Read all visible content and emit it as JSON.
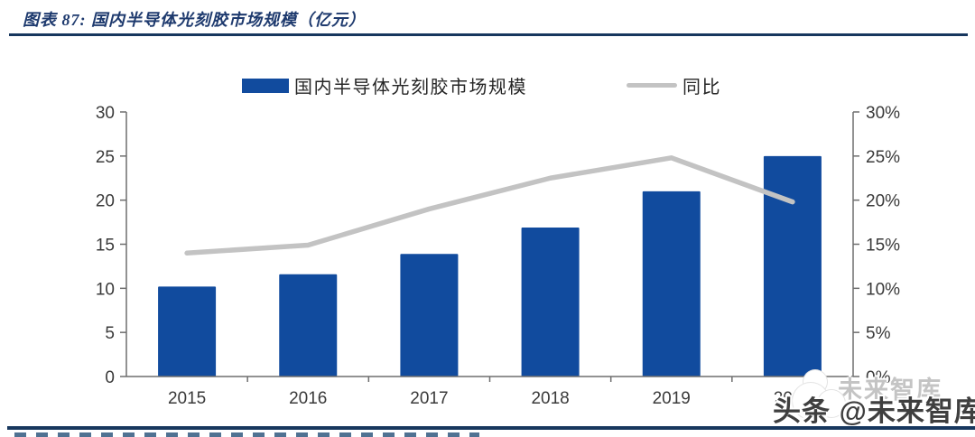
{
  "header": {
    "title": "图表 87:  国内半导体光刻胶市场规模（亿元）"
  },
  "legend": [
    {
      "label": "国内半导体光刻胶市场规模",
      "swatch": "bar-swatch"
    },
    {
      "label": "同比",
      "swatch": "line-swatch"
    }
  ],
  "chart_data": {
    "type": "bar",
    "title": "国内半导体光刻胶市场规模（亿元）",
    "categories": [
      "2015",
      "2016",
      "2017",
      "2018",
      "2019",
      "2020"
    ],
    "series": [
      {
        "name": "国内半导体光刻胶市场规模",
        "type": "bar",
        "axis": "left",
        "unit": "亿元",
        "values": [
          10.2,
          11.6,
          13.9,
          16.9,
          21.0,
          25.0
        ]
      },
      {
        "name": "同比",
        "type": "line",
        "axis": "right",
        "unit": "%",
        "values": [
          14.0,
          14.9,
          19.0,
          22.5,
          24.8,
          19.8
        ]
      }
    ],
    "left_axis": {
      "min": 0,
      "max": 30,
      "step": 5,
      "ticks": [
        "0",
        "5",
        "10",
        "15",
        "20",
        "25",
        "30"
      ]
    },
    "right_axis": {
      "min": 0,
      "max": 30,
      "step": 5,
      "ticks": [
        "0%",
        "5%",
        "10%",
        "15%",
        "20%",
        "25%",
        "30%"
      ]
    },
    "grid": false,
    "legend_position": "top"
  },
  "watermark": {
    "ghost": "未来智库",
    "main": "头条 @未来智库"
  },
  "colors": {
    "bar": "#114B9E",
    "line": "#C3C3C3",
    "axis": "#6E6E6E",
    "tick_text": "#3A3A3A",
    "title": "#1E3A6E",
    "rule": "#17375E"
  }
}
